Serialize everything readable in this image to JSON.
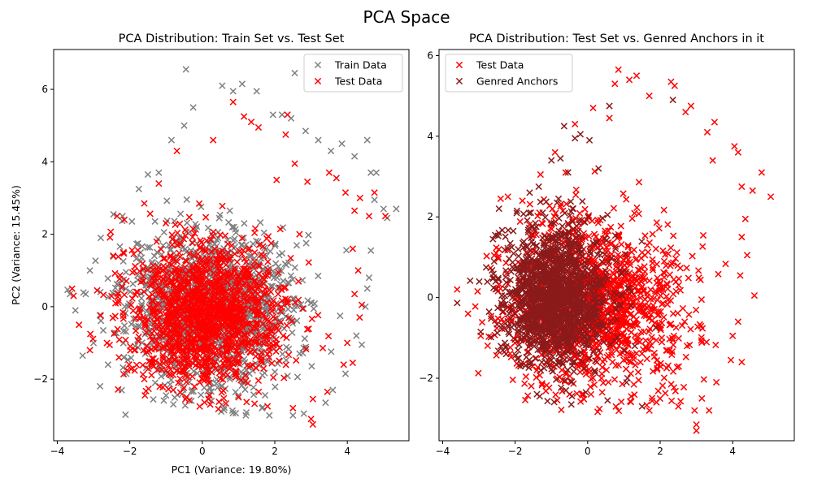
{
  "figure": {
    "suptitle": "PCA Space"
  },
  "chart_data": [
    {
      "type": "scatter",
      "title": "PCA Distribution: Train Set vs. Test Set",
      "xlabel": "PC1 (Variance: 19.80%)",
      "ylabel": "PC2 (Variance: 15.45%)",
      "xlim": [
        -4.1,
        5.7
      ],
      "ylim": [
        -3.7,
        7.1
      ],
      "xticks": [
        -4,
        -2,
        0,
        2,
        4
      ],
      "yticks": [
        -2,
        0,
        2,
        4,
        6
      ],
      "xtick_labels": [
        "−4",
        "−2",
        "0",
        "2",
        "4"
      ],
      "ytick_labels": [
        "−2",
        "0",
        "2",
        "4",
        "6"
      ],
      "grid": false,
      "legend_position": "top-right",
      "marker": "x",
      "series": [
        {
          "name": "Train Data",
          "color": "#808080",
          "cloud": {
            "cx": 0.2,
            "cy": 0.0,
            "sx": 1.45,
            "sy": 1.35,
            "density": "dense"
          },
          "points": [
            [
              -3.65,
              0.35
            ],
            [
              -3.5,
              -0.1
            ],
            [
              -3.3,
              -1.35
            ],
            [
              -3.1,
              1.0
            ],
            [
              -2.8,
              1.9
            ],
            [
              -2.45,
              2.55
            ],
            [
              -2.2,
              2.5
            ],
            [
              -1.75,
              3.25
            ],
            [
              -1.5,
              3.65
            ],
            [
              -1.2,
              3.7
            ],
            [
              -0.85,
              4.6
            ],
            [
              -0.5,
              5.0
            ],
            [
              -0.45,
              6.55
            ],
            [
              -0.25,
              5.5
            ],
            [
              0.55,
              6.1
            ],
            [
              0.85,
              5.95
            ],
            [
              1.1,
              6.15
            ],
            [
              1.5,
              5.95
            ],
            [
              1.95,
              5.3
            ],
            [
              2.2,
              5.3
            ],
            [
              2.45,
              5.2
            ],
            [
              2.85,
              4.85
            ],
            [
              2.55,
              6.45
            ],
            [
              3.2,
              4.6
            ],
            [
              3.55,
              4.3
            ],
            [
              3.85,
              4.5
            ],
            [
              4.2,
              4.15
            ],
            [
              4.55,
              4.6
            ],
            [
              4.65,
              3.7
            ],
            [
              4.8,
              3.7
            ],
            [
              4.75,
              2.95
            ],
            [
              5.0,
              2.7
            ],
            [
              5.35,
              2.7
            ],
            [
              5.1,
              2.45
            ],
            [
              4.65,
              1.55
            ],
            [
              4.6,
              0.8
            ],
            [
              4.55,
              0.5
            ],
            [
              4.5,
              0.0
            ],
            [
              4.25,
              -0.8
            ],
            [
              4.4,
              -1.05
            ],
            [
              3.95,
              -1.85
            ],
            [
              3.6,
              -2.3
            ],
            [
              3.4,
              -2.65
            ],
            [
              2.8,
              -2.95
            ],
            [
              2.5,
              -3.0
            ],
            [
              1.85,
              -3.0
            ],
            [
              1.2,
              -3.0
            ],
            [
              0.6,
              -2.85
            ],
            [
              -0.3,
              -2.6
            ],
            [
              -1.3,
              -2.1
            ],
            [
              -2.1,
              -1.85
            ],
            [
              -2.6,
              -1.6
            ],
            [
              -3.0,
              -1.0
            ],
            [
              -1.0,
              -2.45
            ],
            [
              1.65,
              -2.8
            ]
          ]
        },
        {
          "name": "Test Data",
          "color": "#ff0000",
          "cloud": {
            "cx": 0.1,
            "cy": -0.2,
            "sx": 1.35,
            "sy": 1.25,
            "density": "dense"
          },
          "points": [
            [
              -3.55,
              0.3
            ],
            [
              -3.4,
              -0.5
            ],
            [
              -3.1,
              -1.2
            ],
            [
              -2.9,
              0.45
            ],
            [
              -2.35,
              2.5
            ],
            [
              -2.15,
              2.4
            ],
            [
              -1.6,
              2.85
            ],
            [
              -1.2,
              3.4
            ],
            [
              -0.7,
              4.3
            ],
            [
              0.3,
              4.6
            ],
            [
              0.85,
              5.65
            ],
            [
              1.15,
              5.25
            ],
            [
              1.35,
              5.1
            ],
            [
              1.55,
              4.95
            ],
            [
              2.3,
              4.75
            ],
            [
              2.35,
              5.3
            ],
            [
              2.55,
              3.95
            ],
            [
              2.9,
              3.45
            ],
            [
              3.5,
              3.7
            ],
            [
              3.7,
              3.55
            ],
            [
              3.95,
              3.15
            ],
            [
              4.2,
              2.65
            ],
            [
              4.35,
              3.0
            ],
            [
              4.75,
              3.15
            ],
            [
              4.6,
              2.5
            ],
            [
              5.05,
              2.5
            ],
            [
              4.15,
              1.6
            ],
            [
              4.3,
              1.0
            ],
            [
              4.2,
              0.35
            ],
            [
              4.4,
              0.05
            ],
            [
              4.0,
              -1.0
            ],
            [
              3.9,
              -1.6
            ],
            [
              3.45,
              -2.35
            ],
            [
              3.05,
              -2.55
            ],
            [
              3.05,
              -3.25
            ],
            [
              3.0,
              -3.1
            ],
            [
              2.5,
              -2.8
            ],
            [
              1.8,
              -2.75
            ],
            [
              1.0,
              -2.5
            ],
            [
              0.2,
              -2.45
            ],
            [
              -0.8,
              -2.3
            ],
            [
              -1.6,
              -2.0
            ],
            [
              -2.3,
              -1.4
            ],
            [
              4.15,
              -1.55
            ],
            [
              2.05,
              3.5
            ]
          ]
        }
      ]
    },
    {
      "type": "scatter",
      "title": "PCA Distribution: Test Set vs. Genred Anchors in it",
      "xlabel": "",
      "ylabel": "",
      "xlim": [
        -4.1,
        5.7
      ],
      "ylim": [
        -3.55,
        6.15
      ],
      "xticks": [
        -4,
        -2,
        0,
        2,
        4
      ],
      "yticks": [
        -2,
        0,
        2,
        4,
        6
      ],
      "xtick_labels": [
        "−4",
        "−2",
        "0",
        "2",
        "4"
      ],
      "ytick_labels": [
        "−2",
        "0",
        "2",
        "4",
        "6"
      ],
      "grid": false,
      "legend_position": "top-left",
      "marker": "x",
      "series": [
        {
          "name": "Test Data",
          "color": "#ff0000",
          "cloud": {
            "cx": 0.2,
            "cy": -0.2,
            "sx": 1.5,
            "sy": 1.3,
            "density": "dense"
          },
          "points": [
            [
              -3.6,
              0.2
            ],
            [
              -3.3,
              -0.4
            ],
            [
              -2.95,
              -0.95
            ],
            [
              -2.4,
              2.45
            ],
            [
              -2.2,
              2.5
            ],
            [
              -1.8,
              2.4
            ],
            [
              -1.3,
              3.05
            ],
            [
              -0.9,
              3.6
            ],
            [
              -0.35,
              4.3
            ],
            [
              0.15,
              4.7
            ],
            [
              0.6,
              4.45
            ],
            [
              0.75,
              5.3
            ],
            [
              0.85,
              5.65
            ],
            [
              1.15,
              5.4
            ],
            [
              1.35,
              5.5
            ],
            [
              1.7,
              5.0
            ],
            [
              2.3,
              5.35
            ],
            [
              2.4,
              5.25
            ],
            [
              2.7,
              4.6
            ],
            [
              2.85,
              4.75
            ],
            [
              3.3,
              4.1
            ],
            [
              3.5,
              4.35
            ],
            [
              3.45,
              3.4
            ],
            [
              4.05,
              3.75
            ],
            [
              4.15,
              3.6
            ],
            [
              4.8,
              3.1
            ],
            [
              5.05,
              2.5
            ],
            [
              4.55,
              2.65
            ],
            [
              4.25,
              2.75
            ],
            [
              4.35,
              1.95
            ],
            [
              4.4,
              1.05
            ],
            [
              4.25,
              1.5
            ],
            [
              4.6,
              0.05
            ],
            [
              4.15,
              -0.6
            ],
            [
              4.0,
              -0.95
            ],
            [
              3.95,
              -1.55
            ],
            [
              3.55,
              -2.1
            ],
            [
              3.15,
              -2.5
            ],
            [
              2.95,
              -2.8
            ],
            [
              3.0,
              -3.15
            ],
            [
              3.0,
              -3.3
            ],
            [
              3.35,
              -2.8
            ],
            [
              2.5,
              -2.7
            ],
            [
              1.9,
              -2.6
            ],
            [
              1.2,
              -2.45
            ],
            [
              0.4,
              -2.35
            ],
            [
              -0.5,
              -2.4
            ],
            [
              -1.4,
              -1.8
            ],
            [
              -2.3,
              -1.35
            ],
            [
              4.25,
              -1.6
            ]
          ]
        },
        {
          "name": "Genred Anchors",
          "color": "#8b1a1a",
          "cloud": {
            "cx": -0.9,
            "cy": 0.0,
            "sx": 0.9,
            "sy": 1.0,
            "density": "dense"
          },
          "points": [
            [
              -2.95,
              -0.85
            ],
            [
              -2.8,
              0.75
            ],
            [
              -2.55,
              1.55
            ],
            [
              -2.45,
              1.6
            ],
            [
              -2.25,
              -1.4
            ],
            [
              -1.95,
              2.15
            ],
            [
              -1.6,
              2.6
            ],
            [
              -1.35,
              2.75
            ],
            [
              -1.0,
              3.4
            ],
            [
              -0.75,
              3.45
            ],
            [
              -0.65,
              4.25
            ],
            [
              -0.35,
              3.95
            ],
            [
              -0.2,
              4.05
            ],
            [
              0.05,
              3.9
            ],
            [
              0.3,
              3.2
            ],
            [
              0.55,
              2.05
            ],
            [
              0.8,
              0.9
            ],
            [
              0.9,
              -0.2
            ],
            [
              1.0,
              -1.3
            ],
            [
              1.1,
              -2.0
            ],
            [
              1.5,
              -2.7
            ],
            [
              0.55,
              -2.55
            ],
            [
              -0.05,
              -2.35
            ],
            [
              -0.6,
              -2.3
            ],
            [
              -1.2,
              -1.75
            ],
            [
              -1.9,
              -1.5
            ],
            [
              -0.45,
              -2.65
            ],
            [
              0.6,
              4.75
            ],
            [
              2.35,
              4.9
            ],
            [
              1.3,
              -1.2
            ]
          ]
        }
      ]
    }
  ]
}
